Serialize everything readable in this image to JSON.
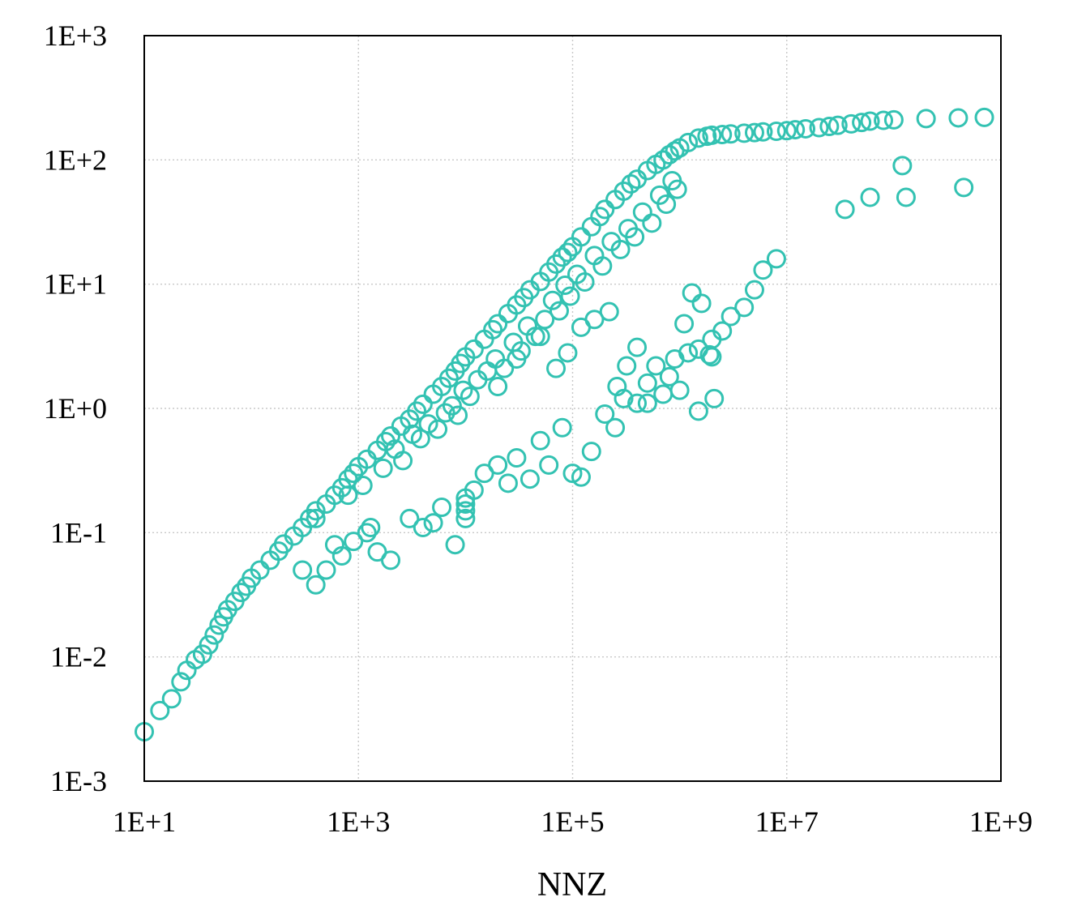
{
  "chart_data": {
    "type": "scatter",
    "title": "",
    "xlabel": "NNZ",
    "ylabel": "",
    "x_scale": "log",
    "y_scale": "log",
    "xlim": [
      10,
      1000000000
    ],
    "ylim": [
      0.001,
      1000
    ],
    "x_ticks": [
      {
        "value": 10,
        "label": "1E+1"
      },
      {
        "value": 1000,
        "label": "1E+3"
      },
      {
        "value": 100000,
        "label": "1E+5"
      },
      {
        "value": 10000000,
        "label": "1E+7"
      },
      {
        "value": 1000000000,
        "label": "1E+9"
      }
    ],
    "y_ticks": [
      {
        "value": 0.001,
        "label": "1E-3"
      },
      {
        "value": 0.01,
        "label": "1E-2"
      },
      {
        "value": 0.1,
        "label": "1E-1"
      },
      {
        "value": 1,
        "label": "1E+0"
      },
      {
        "value": 10,
        "label": "1E+1"
      },
      {
        "value": 100,
        "label": "1E+2"
      },
      {
        "value": 1000,
        "label": "1E+3"
      }
    ],
    "grid": true,
    "legend": "none",
    "marker": "hollow-circle",
    "color": "#33c2b2",
    "series": [
      {
        "x": [
          10,
          14,
          18,
          22,
          25,
          30,
          35,
          40,
          45,
          50,
          55,
          60,
          70,
          80,
          90,
          100,
          120,
          150,
          180,
          200,
          250,
          300,
          350,
          400,
          500,
          600,
          700,
          800,
          900,
          1000,
          1200,
          1500,
          1800,
          2000,
          2500,
          3000,
          3500,
          4000,
          5000,
          6000,
          7000,
          8000,
          9000,
          10000,
          12000,
          15000,
          18000,
          20000,
          25000,
          30000,
          35000,
          40000,
          50000,
          60000,
          70000,
          80000,
          90000,
          100000,
          120000,
          150000,
          180000,
          200000,
          250000,
          300000,
          350000,
          400000,
          500000,
          600000,
          700000,
          800000,
          900000,
          1000000,
          1200000,
          1500000,
          1800000,
          2000000,
          2500000,
          3000000,
          4000000,
          5000000,
          6000000,
          8000000,
          10000000,
          12000000,
          15000000,
          20000000,
          25000000,
          30000000,
          40000000,
          50000000,
          60000000,
          80000000,
          100000000,
          200000000,
          400000000,
          700000000,
          400,
          500,
          700,
          900,
          1200,
          1500,
          2000,
          3000,
          4000,
          5000,
          6000,
          8000,
          10000,
          10000,
          10000,
          10000,
          12000,
          15000,
          20000,
          25000,
          30000,
          40000,
          50000,
          60000,
          80000,
          100000,
          120000,
          150000,
          200000,
          250000,
          300000,
          400000,
          500000,
          600000,
          800000,
          1000000,
          1200000,
          1500000,
          2000000,
          2500000,
          3000000,
          4000000,
          5000000,
          6000000,
          8000000,
          20000,
          30000,
          50000,
          70000,
          90000,
          120000,
          160000,
          220000,
          260000,
          320000,
          400000,
          500000,
          700000,
          900000,
          1100000,
          1300000,
          1600000,
          1900000,
          2100000,
          1500000,
          2000000,
          60000000,
          120000000,
          450000000,
          35000000,
          130000000,
          300,
          400,
          600,
          800,
          1100,
          1300,
          1700,
          2200,
          2600,
          3200,
          3800,
          4500,
          5500,
          6500,
          7500,
          8500,
          9500,
          11000,
          13000,
          16000,
          19000,
          23000,
          28000,
          33000,
          38000,
          45000,
          55000,
          65000,
          75000,
          85000,
          95000,
          110000,
          130000,
          160000,
          190000,
          230000,
          280000,
          330000,
          380000,
          450000,
          550000,
          650000,
          750000,
          850000,
          950000
        ],
        "y": [
          0.0025,
          0.0037,
          0.0046,
          0.0063,
          0.0078,
          0.0095,
          0.0105,
          0.0125,
          0.015,
          0.018,
          0.021,
          0.024,
          0.028,
          0.033,
          0.037,
          0.043,
          0.05,
          0.06,
          0.071,
          0.081,
          0.094,
          0.11,
          0.13,
          0.15,
          0.17,
          0.2,
          0.23,
          0.27,
          0.3,
          0.34,
          0.39,
          0.46,
          0.54,
          0.6,
          0.72,
          0.82,
          0.95,
          1.08,
          1.3,
          1.5,
          1.75,
          2.0,
          2.3,
          2.6,
          3.0,
          3.6,
          4.3,
          4.8,
          5.8,
          6.8,
          7.8,
          9.0,
          10.5,
          12.5,
          14.5,
          16.5,
          18.0,
          20.0,
          24.0,
          29.0,
          35.0,
          40.0,
          48.0,
          56.0,
          64.0,
          70.0,
          82.0,
          92.0,
          100.0,
          110.0,
          118.0,
          125.0,
          138.0,
          150.0,
          155.0,
          158.0,
          160.0,
          162.0,
          164.0,
          166.0,
          168.0,
          170.0,
          172.0,
          175.0,
          178.0,
          182.0,
          186.0,
          190.0,
          195.0,
          200.0,
          205.0,
          208.0,
          210.0,
          215.0,
          218.0,
          220.0,
          0.038,
          0.05,
          0.065,
          0.085,
          0.1,
          0.07,
          0.06,
          0.13,
          0.11,
          0.12,
          0.16,
          0.08,
          0.19,
          0.15,
          0.13,
          0.17,
          0.22,
          0.3,
          0.35,
          0.25,
          0.4,
          0.27,
          0.55,
          0.35,
          0.7,
          0.3,
          0.28,
          0.45,
          0.9,
          0.7,
          1.2,
          1.1,
          1.6,
          2.2,
          1.8,
          1.4,
          2.8,
          3.0,
          3.6,
          4.2,
          5.5,
          6.5,
          9.0,
          13.0,
          16.0,
          1.5,
          2.5,
          3.8,
          2.1,
          2.8,
          4.5,
          5.2,
          6.0,
          1.5,
          2.2,
          3.1,
          1.1,
          1.3,
          2.5,
          4.8,
          8.5,
          7.0,
          2.7,
          1.2,
          0.95,
          2.6,
          50.0,
          90.0,
          60.0,
          40.0,
          50.0,
          0.05,
          0.13,
          0.08,
          0.2,
          0.24,
          0.11,
          0.33,
          0.47,
          0.38,
          0.62,
          0.57,
          0.75,
          0.68,
          0.92,
          1.05,
          0.88,
          1.4,
          1.25,
          1.7,
          2.0,
          2.5,
          2.1,
          3.4,
          2.9,
          4.6,
          3.8,
          5.2,
          7.4,
          6.1,
          9.8,
          8.0,
          12.0,
          10.4,
          17.0,
          14.0,
          22.0,
          19.0,
          28.0,
          24.0,
          38.0,
          31.0,
          52.0,
          44.0,
          68.0,
          58.0
        ]
      }
    ]
  }
}
